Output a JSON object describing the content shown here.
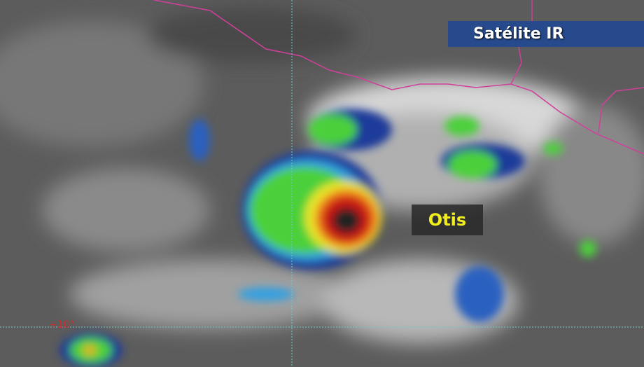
{
  "title": "Satélite IR",
  "storm_label": "Otis",
  "latitude_label": "+10°",
  "colors": {
    "title_bg": "#264a8c",
    "storm_label_text": "#f2ee1e",
    "borders": "#d0409a",
    "gridlines": "#6fc8c8",
    "latitude_label": "#c8302c"
  }
}
